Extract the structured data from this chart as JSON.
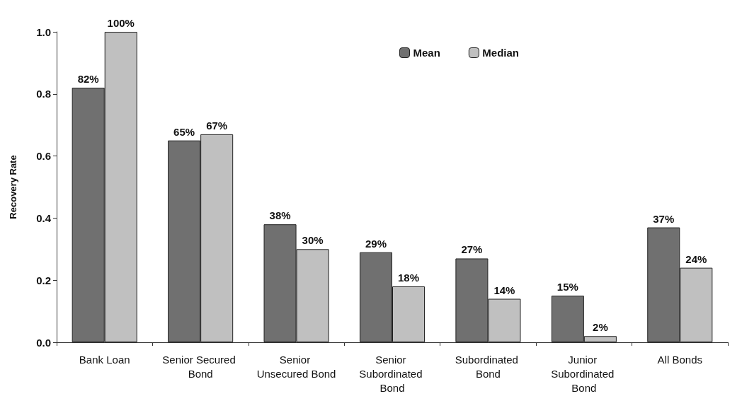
{
  "chart_data": {
    "type": "bar",
    "ylabel": "Recovery Rate",
    "categories": [
      "Bank Loan",
      "Senior Secured Bond",
      "Senior Unsecured Bond",
      "Senior Subordinated Bond",
      "Subordinated Bond",
      "Junior Subordinated Bond",
      "All Bonds"
    ],
    "series": [
      {
        "name": "Mean",
        "color": "#707070",
        "values": [
          0.82,
          0.65,
          0.38,
          0.29,
          0.27,
          0.15,
          0.37
        ],
        "value_labels": [
          "82%",
          "65%",
          "38%",
          "29%",
          "27%",
          "15%",
          "37%"
        ]
      },
      {
        "name": "Median",
        "color": "#c0c0c0",
        "values": [
          1.0,
          0.67,
          0.3,
          0.18,
          0.14,
          0.02,
          0.24
        ],
        "value_labels": [
          "100%",
          "67%",
          "30%",
          "18%",
          "14%",
          "2%",
          "24%"
        ]
      }
    ],
    "ylim": [
      0,
      1
    ],
    "yticks": [
      {
        "value": 0,
        "label": "0.0"
      },
      {
        "value": 0.2,
        "label": "0.2"
      },
      {
        "value": 0.4,
        "label": "0.4"
      },
      {
        "value": 0.6,
        "label": "0.6"
      },
      {
        "value": 0.8,
        "label": "0.8"
      },
      {
        "value": 1,
        "label": "1.0"
      }
    ],
    "grid": false,
    "legend": "top right"
  }
}
